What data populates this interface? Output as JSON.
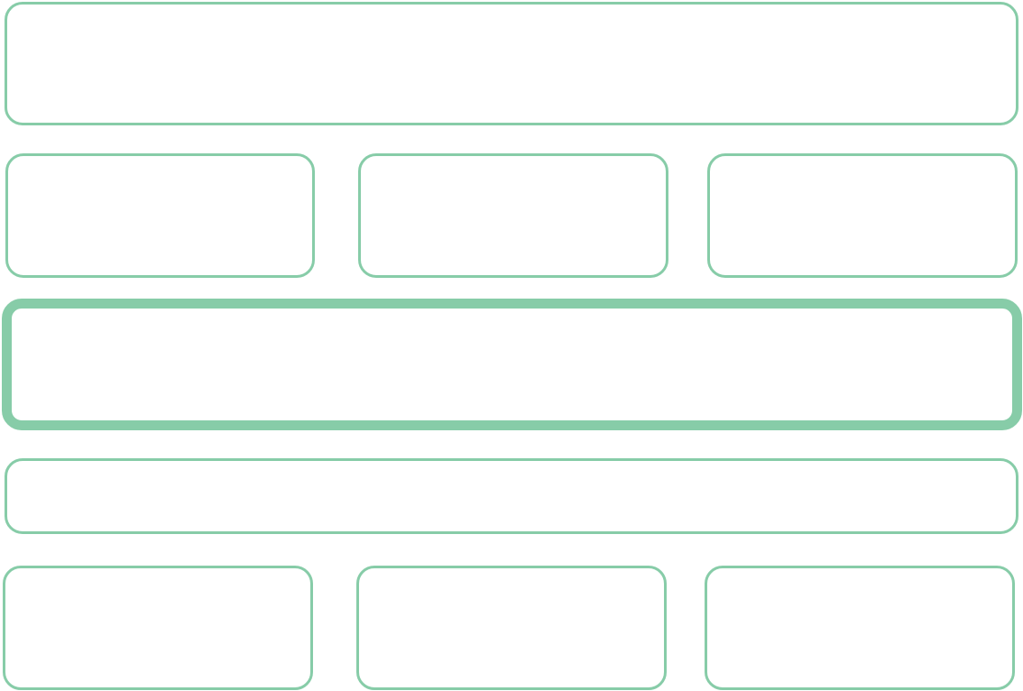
{
  "theme": {
    "border_color": "#87cca8",
    "background": "#ffffff"
  },
  "layout": {
    "header_panel": {
      "label": ""
    },
    "top_cards": [
      {
        "label": ""
      },
      {
        "label": ""
      },
      {
        "label": ""
      }
    ],
    "selected_panel": {
      "label": "",
      "selected": true
    },
    "bar_panel": {
      "label": ""
    },
    "bottom_cards": [
      {
        "label": ""
      },
      {
        "label": ""
      },
      {
        "label": ""
      }
    ]
  }
}
